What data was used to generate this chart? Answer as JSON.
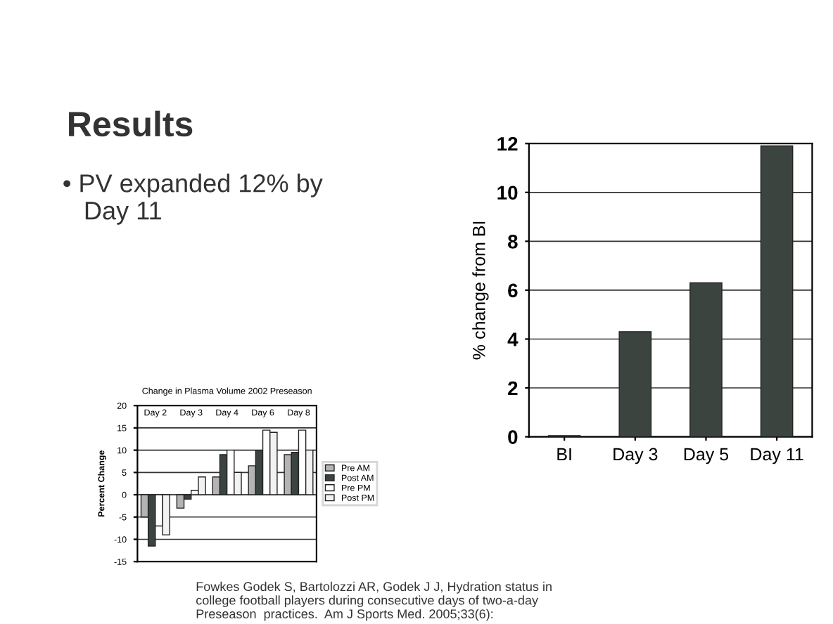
{
  "chart_data": [
    {
      "type": "bar",
      "categories": [
        "BI",
        "Day 3",
        "Day 5",
        "Day 11"
      ],
      "values": [
        0.05,
        4.3,
        6.3,
        11.9
      ],
      "color": "#3c4440",
      "ylabel": "% change from BI",
      "ylim": [
        0,
        12
      ],
      "yticks": [
        0,
        2,
        4,
        6,
        8,
        10,
        12
      ],
      "grid": "y",
      "annotations": [
        "Results",
        "• PV expanded 12% by\n   Day 11",
        "Fowkes Godek S, Bartolozzi AR, Godek J J, Hydration status in\ncollege football players during consecutive days of two-a-day\nPreseason  practices.  Am J Sports Med. 2005;33(6):"
      ]
    },
    {
      "type": "bar",
      "title": "Change in Plasma Volume 2002 Preseason",
      "ylabel": "Percent Change",
      "categories": [
        "Day 2",
        "Day 3",
        "Day 4",
        "Day 6",
        "Day 8"
      ],
      "ylim": [
        -15,
        20
      ],
      "yticks": [
        -15,
        -10,
        -5,
        0,
        5,
        10,
        15,
        20
      ],
      "grid": "y",
      "legend": "right",
      "series": [
        {
          "name": "Pre AM",
          "color": "#b4b4b4",
          "values": [
            -5,
            -3,
            4,
            6.5,
            9
          ]
        },
        {
          "name": "Post AM",
          "color": "#3c4440",
          "values": [
            -11.5,
            -1,
            9,
            10,
            9.5
          ]
        },
        {
          "name": "Pre PM",
          "color": "#ffffff",
          "values": [
            -7,
            1,
            10,
            14.5,
            14.5
          ]
        },
        {
          "name": "Post PM",
          "color": "#f2f2f2",
          "values": [
            -9,
            4,
            5,
            14,
            10
          ]
        }
      ]
    }
  ]
}
